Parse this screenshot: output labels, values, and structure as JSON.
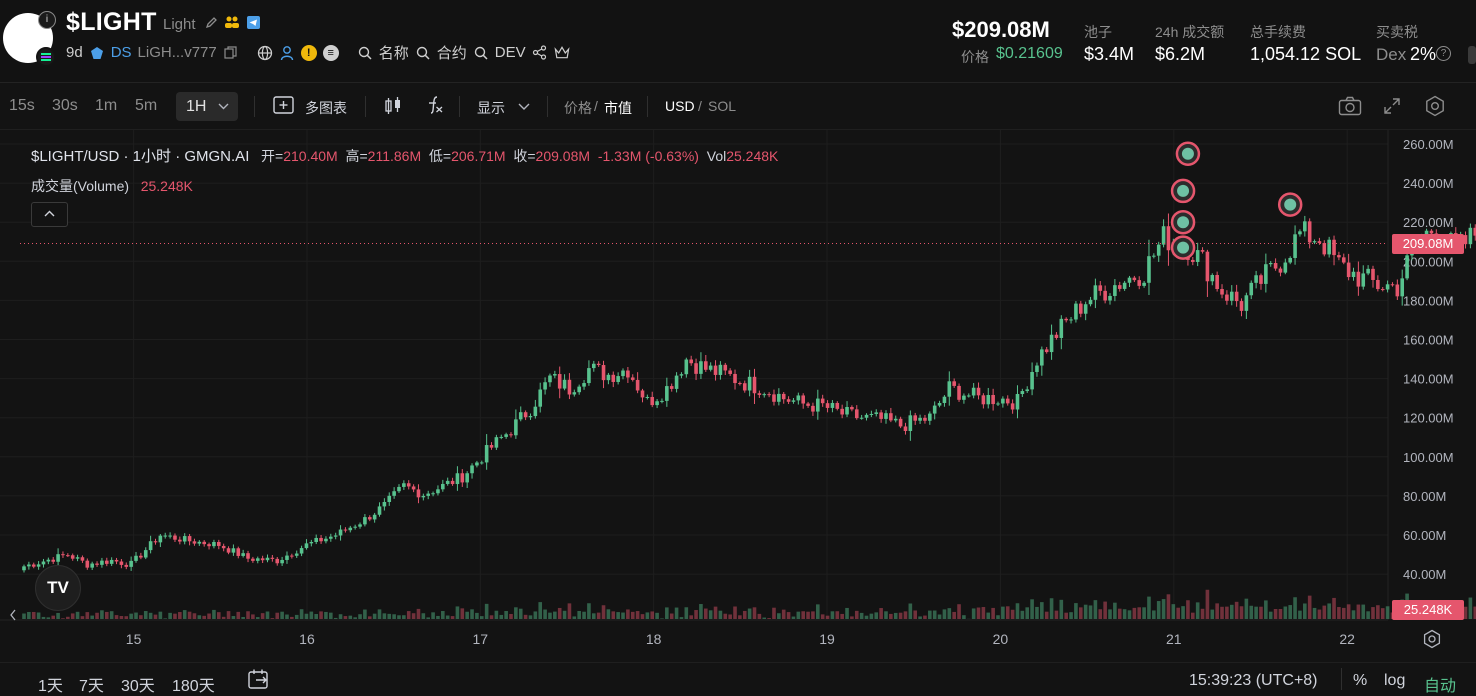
{
  "header": {
    "symbol": "$LIGHT",
    "name": "Light",
    "age": "9d",
    "ds_label": "DS",
    "address": "LiGH...v777",
    "name_search": "名称",
    "contract_search": "合约",
    "dev_search": "DEV",
    "market_cap": "$209.08M",
    "price_label": "价格",
    "price_value": "$0.21609",
    "stats": [
      {
        "label": "池子",
        "value": "$3.4M"
      },
      {
        "label": "24h 成交额",
        "value": "$6.2M"
      },
      {
        "label": "总手续费",
        "value": "1,054.12 SOL"
      },
      {
        "label": "买卖税",
        "value": "2%"
      }
    ],
    "dex_label": "Dex",
    "help_glyph": "?"
  },
  "toolbar": {
    "timeframes": [
      "15s",
      "30s",
      "1m",
      "5m"
    ],
    "active_timeframe": "1H",
    "multi_chart": "多图表",
    "display": "显示",
    "price_label": "价格",
    "slash": "/",
    "mcap_label": "市值",
    "usd_label": "USD",
    "sol_label": "SOL"
  },
  "legend": {
    "title": "$LIGHT/USD · 1小时 · GMGN.AI",
    "open_label": "开=",
    "open": "210.40M",
    "high_label": "高=",
    "high": "211.86M",
    "low_label": "低=",
    "low": "206.71M",
    "close_label": "收=",
    "close": "209.08M",
    "change": "-1.33M (-0.63%)",
    "vol_label": "Vol",
    "vol": "25.248K",
    "volume_label": "成交量(Volume)",
    "volume_value": "25.248K"
  },
  "tv_logo": "TV",
  "last_price_tag": "209.08M",
  "last_volume_tag": "25.248K",
  "bottom": {
    "ranges": [
      "1天",
      "7天",
      "30天",
      "180天"
    ],
    "clock": "15:39:23 (UTC+8)",
    "percent": "%",
    "log": "log",
    "auto": "自动"
  },
  "chart_data": {
    "type": "candlestick",
    "interval": "1H",
    "y_unit": "M",
    "yticks": [
      40,
      60,
      80,
      100,
      120,
      140,
      160,
      180,
      200,
      220,
      240,
      260
    ],
    "ytick_labels": [
      "40.00M",
      "60.00M",
      "80.00M",
      "100.00M",
      "120.00M",
      "140.00M",
      "160.00M",
      "180.00M",
      "200.00M",
      "220.00M",
      "240.00M",
      "260.00M"
    ],
    "x_labels": [
      "15",
      "16",
      "17",
      "18",
      "19",
      "20",
      "21",
      "22"
    ],
    "ylim": [
      33,
      268
    ],
    "last_price": 209.08,
    "anchors": [
      [
        0,
        44
      ],
      [
        9,
        50
      ],
      [
        13,
        45
      ],
      [
        18,
        47
      ],
      [
        22,
        45
      ],
      [
        28,
        60
      ],
      [
        34,
        57
      ],
      [
        40,
        55
      ],
      [
        46,
        48
      ],
      [
        52,
        47
      ],
      [
        58,
        55
      ],
      [
        64,
        60
      ],
      [
        70,
        68
      ],
      [
        74,
        75
      ],
      [
        78,
        85
      ],
      [
        82,
        81
      ],
      [
        86,
        85
      ],
      [
        90,
        90
      ],
      [
        96,
        105
      ],
      [
        100,
        114
      ],
      [
        104,
        125
      ],
      [
        108,
        140
      ],
      [
        112,
        135
      ],
      [
        116,
        145
      ],
      [
        120,
        142
      ],
      [
        124,
        145
      ],
      [
        128,
        128
      ],
      [
        132,
        135
      ],
      [
        136,
        150
      ],
      [
        140,
        145
      ],
      [
        144,
        142
      ],
      [
        148,
        138
      ],
      [
        152,
        135
      ],
      [
        156,
        130
      ],
      [
        160,
        127
      ],
      [
        164,
        126
      ],
      [
        168,
        122
      ],
      [
        172,
        120
      ],
      [
        176,
        119
      ],
      [
        180,
        116
      ],
      [
        186,
        120
      ],
      [
        190,
        135
      ],
      [
        196,
        130
      ],
      [
        200,
        130
      ],
      [
        204,
        128
      ],
      [
        208,
        150
      ],
      [
        212,
        163
      ],
      [
        218,
        180
      ],
      [
        224,
        188
      ],
      [
        230,
        195
      ],
      [
        234,
        212
      ],
      [
        238,
        210
      ],
      [
        242,
        200
      ],
      [
        246,
        185
      ],
      [
        250,
        178
      ],
      [
        254,
        190
      ],
      [
        258,
        200
      ],
      [
        262,
        214
      ],
      [
        266,
        212
      ],
      [
        270,
        198
      ],
      [
        274,
        192
      ],
      [
        278,
        188
      ],
      [
        282,
        187
      ],
      [
        286,
        210
      ],
      [
        290,
        218
      ],
      [
        294,
        205
      ],
      [
        298,
        214
      ],
      [
        302,
        208
      ],
      [
        306,
        203
      ],
      [
        310,
        204
      ],
      [
        314,
        196
      ],
      [
        318,
        183
      ],
      [
        320,
        180
      ],
      [
        322,
        222
      ],
      [
        324,
        221
      ],
      [
        328,
        210
      ],
      [
        330,
        209.08
      ]
    ],
    "events": [
      {
        "x": 238,
        "y": 207
      },
      {
        "x": 238,
        "y": 220
      },
      {
        "x": 238,
        "y": 236
      },
      {
        "x": 239,
        "y": 255
      },
      {
        "x": 260,
        "y": 229
      }
    ]
  }
}
